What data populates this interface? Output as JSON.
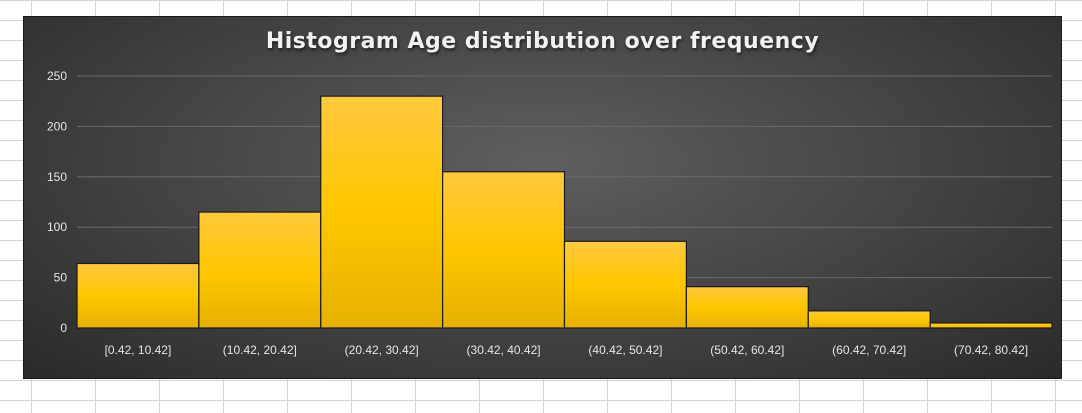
{
  "chart_data": {
    "type": "bar",
    "title": "Histogram Age distribution over frequency",
    "xlabel": "",
    "ylabel": "",
    "categories": [
      "[0.42, 10.42]",
      "(10.42, 20.42]",
      "(20.42, 30.42]",
      "(30.42, 40.42]",
      "(40.42, 50.42]",
      "(50.42, 60.42]",
      "(60.42, 70.42]",
      "(70.42, 80.42]"
    ],
    "values": [
      64,
      115,
      230,
      155,
      86,
      41,
      17,
      5
    ],
    "ylim": [
      0,
      250
    ],
    "yticks": [
      "0",
      "50",
      "100",
      "150",
      "200",
      "250"
    ],
    "grid": true,
    "legend": "none",
    "colors": {
      "bar_top": "#ffc93f",
      "bar_bottom": "#e6b100",
      "bar_mid": "#ffc700",
      "bar_edge": "#1a1a1a",
      "text": "#e6e6e6",
      "gridline": "#6a6a6a"
    }
  }
}
